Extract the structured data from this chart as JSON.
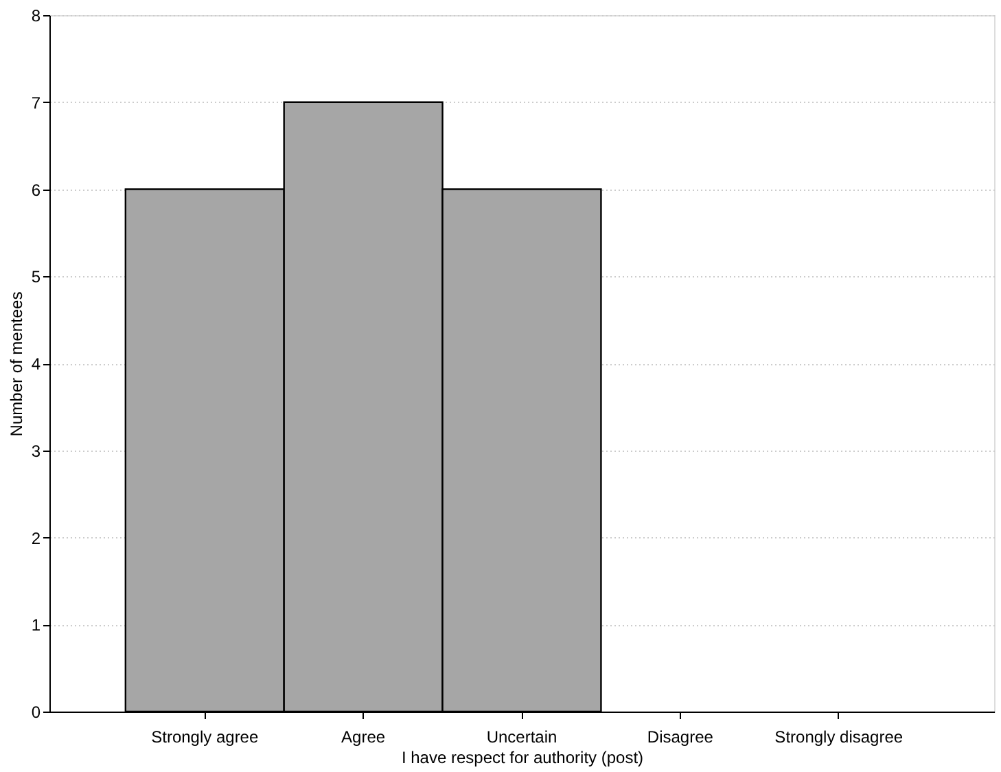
{
  "chart_data": {
    "type": "bar",
    "xlabel": "I have respect for authority (post)",
    "ylabel": "Number of mentees",
    "categories": [
      "Strongly agree",
      "Agree",
      "Uncertain",
      "Disagree",
      "Strongly disagree"
    ],
    "values": [
      6,
      7,
      6,
      0,
      0
    ],
    "color": "#a6a6a6",
    "ylim": [
      0,
      8
    ],
    "yticks": [
      0,
      1,
      2,
      3,
      4,
      5,
      6,
      7,
      8
    ],
    "grid": "y"
  }
}
